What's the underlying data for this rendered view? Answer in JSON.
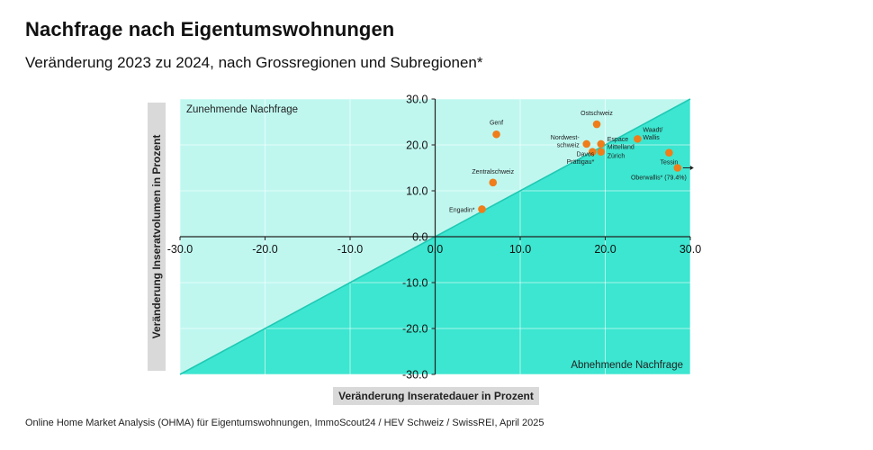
{
  "title": "Nachfrage nach Eigentumswohnungen",
  "subtitle": "Veränderung 2023 zu 2024, nach Grossregionen und Subregionen*",
  "source": "Online Home Market Analysis (OHMA) für Eigentumswohnungen, ImmoScout24 / HEV Schweiz / SwissREI, April 2025",
  "colors": {
    "upper_region": "#bff7ef",
    "lower_region": "#3ce6d0",
    "points": "#ef7d1a",
    "diagonal": "#1fc9b4"
  },
  "chart_data": {
    "type": "scatter",
    "xlabel": "Veränderung Inseratedauer in Prozent",
    "ylabel": "Veränderung Inseratvolumen in Prozent",
    "xlim": [
      -30,
      30
    ],
    "ylim": [
      -30,
      30
    ],
    "xticks": [
      "-30.0",
      "-20.0",
      "-10.0",
      "0.0",
      "10.0",
      "20.0",
      "30.0"
    ],
    "yticks": [
      "30.0",
      "20.0",
      "10.0",
      "0.0",
      "-10.0",
      "-20.0",
      "-30.0"
    ],
    "grid": true,
    "region_labels": {
      "upper": "Zunehmende Nachfrage",
      "lower": "Abnehmende Nachfrage"
    },
    "points": [
      {
        "label": "Genf",
        "x": 7.2,
        "y": 22.3
      },
      {
        "label": "Ostschweiz",
        "x": 19.0,
        "y": 24.5
      },
      {
        "label": "Nordwest-\nschweiz",
        "x": 17.8,
        "y": 20.2
      },
      {
        "label": "Espace\nMittelland",
        "x": 19.5,
        "y": 20.2
      },
      {
        "label": "Davos\nPrättigau*",
        "x": 18.5,
        "y": 18.5
      },
      {
        "label": "Zürich",
        "x": 19.5,
        "y": 18.5
      },
      {
        "label": "Waadt/\nWallis",
        "x": 23.8,
        "y": 21.3
      },
      {
        "label": "Tessin",
        "x": 27.5,
        "y": 18.3
      },
      {
        "label": "Oberwallis* (79.4%)",
        "x": 28.5,
        "y": 15.0
      },
      {
        "label": "Zentralschweiz",
        "x": 6.8,
        "y": 11.8
      },
      {
        "label": "Engadin*",
        "x": 5.5,
        "y": 6.0
      }
    ]
  }
}
